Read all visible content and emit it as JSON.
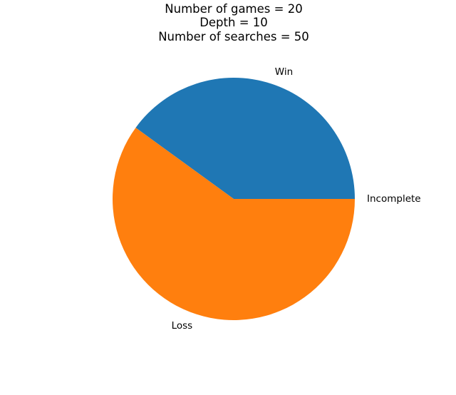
{
  "chart_data": {
    "type": "pie",
    "title_lines": [
      "Number of games = 20",
      "Depth = 10",
      "Number of searches = 50"
    ],
    "categories": [
      "Win",
      "Loss",
      "Incomplete"
    ],
    "values": [
      8,
      12,
      0
    ],
    "colors": [
      "#1f77b4",
      "#ff7f0e",
      "#2ca02c"
    ],
    "start_angle": 0,
    "direction": "counterclockwise",
    "legend": "none"
  }
}
